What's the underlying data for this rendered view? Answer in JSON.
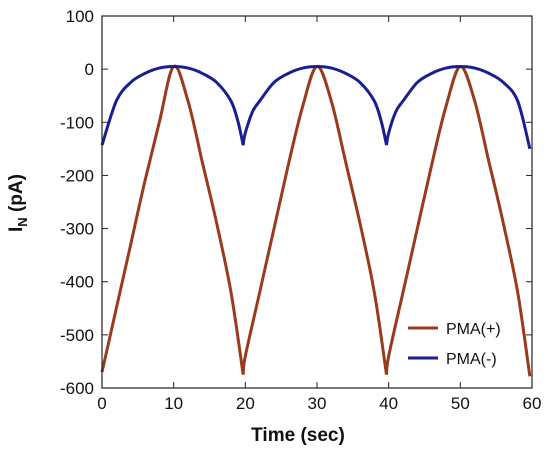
{
  "chart_data": {
    "type": "line",
    "title": "",
    "xlabel": "Time (sec)",
    "ylabel_main": "I",
    "ylabel_sub": "N",
    "ylabel_unit": " (pA)",
    "xlim": [
      0,
      60
    ],
    "ylim": [
      -600,
      100
    ],
    "xticks": [
      0,
      10,
      20,
      30,
      40,
      50,
      60
    ],
    "yticks": [
      100,
      0,
      -100,
      -200,
      -300,
      -400,
      -500,
      -600
    ],
    "grid": false,
    "legend_position": "bottom-right",
    "series": [
      {
        "name": "PMA(+)",
        "color": "#9a3a1c",
        "x": [
          0,
          2,
          4,
          6,
          8,
          10,
          12,
          14,
          16,
          18,
          19.7,
          20,
          22,
          24,
          26,
          28,
          30,
          32,
          34,
          36,
          38,
          39.7,
          40,
          42,
          44,
          46,
          48,
          50,
          52,
          54,
          56,
          58,
          59.7
        ],
        "y": [
          -570,
          -450,
          -330,
          -210,
          -100,
          5,
          -60,
          -175,
          -290,
          -420,
          -575,
          -540,
          -420,
          -300,
          -180,
          -70,
          5,
          -60,
          -175,
          -290,
          -420,
          -575,
          -540,
          -420,
          -300,
          -180,
          -70,
          5,
          -60,
          -175,
          -290,
          -420,
          -578
        ]
      },
      {
        "name": "PMA(-)",
        "color": "#1a1f8f",
        "x": [
          0,
          2,
          4,
          6,
          8,
          10,
          12,
          14,
          16,
          18,
          19,
          19.7,
          20,
          21,
          22,
          24,
          26,
          28,
          30,
          32,
          34,
          36,
          38,
          39,
          39.7,
          40,
          41,
          42,
          44,
          46,
          48,
          50,
          52,
          54,
          56,
          58,
          59.7
        ],
        "y": [
          -143,
          -60,
          -25,
          -8,
          2,
          5,
          2,
          -8,
          -25,
          -60,
          -100,
          -143,
          -120,
          -80,
          -60,
          -25,
          -8,
          2,
          5,
          2,
          -8,
          -25,
          -60,
          -100,
          -143,
          -120,
          -80,
          -60,
          -25,
          -8,
          2,
          5,
          2,
          -8,
          -25,
          -60,
          -150
        ]
      }
    ]
  }
}
